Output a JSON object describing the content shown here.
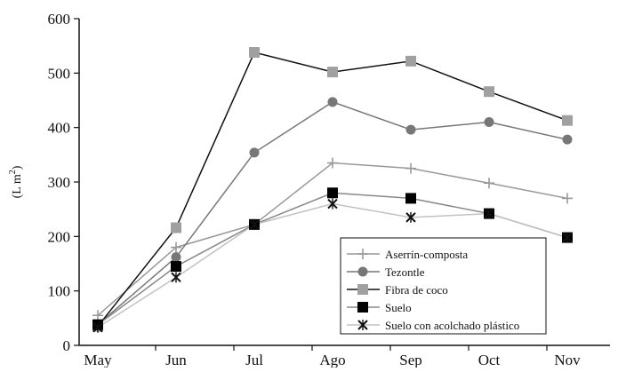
{
  "chart_data": {
    "type": "line",
    "categories": [
      "May",
      "Jun",
      "Jul",
      "Ago",
      "Sep",
      "Oct",
      "Nov"
    ],
    "ylabel": "(L m",
    "ylabel_sup": "2",
    "ylabel_close": ")",
    "ylim": [
      0,
      600
    ],
    "yticks": [
      "0",
      "100",
      "200",
      "300",
      "400",
      "500",
      "600"
    ],
    "grid": false,
    "legend_position": "bottom-right",
    "series": [
      {
        "name": "Aserrín-composta",
        "marker": "plus",
        "color": "#999999",
        "values": [
          55,
          180,
          222,
          335,
          325,
          298,
          270
        ]
      },
      {
        "name": "Tezontle",
        "marker": "circle",
        "color": "#777777",
        "values": [
          38,
          162,
          354,
          447,
          396,
          410,
          378
        ]
      },
      {
        "name": "Fibra de coco",
        "marker": "square",
        "color": "#a0a0a0",
        "line_color": "#111111",
        "values": [
          35,
          216,
          538,
          502,
          522,
          466,
          413
        ]
      },
      {
        "name": "Suelo",
        "marker": "filled-square",
        "color": "#000000",
        "line_color": "#888888",
        "values": [
          38,
          145,
          222,
          280,
          270,
          242,
          198
        ]
      },
      {
        "name": "Suelo con acolchado plástico",
        "marker": "asterisk",
        "color": "#111111",
        "line_color": "#c2c2c2",
        "values": [
          33,
          125,
          222,
          260,
          235,
          242,
          198
        ]
      }
    ]
  }
}
